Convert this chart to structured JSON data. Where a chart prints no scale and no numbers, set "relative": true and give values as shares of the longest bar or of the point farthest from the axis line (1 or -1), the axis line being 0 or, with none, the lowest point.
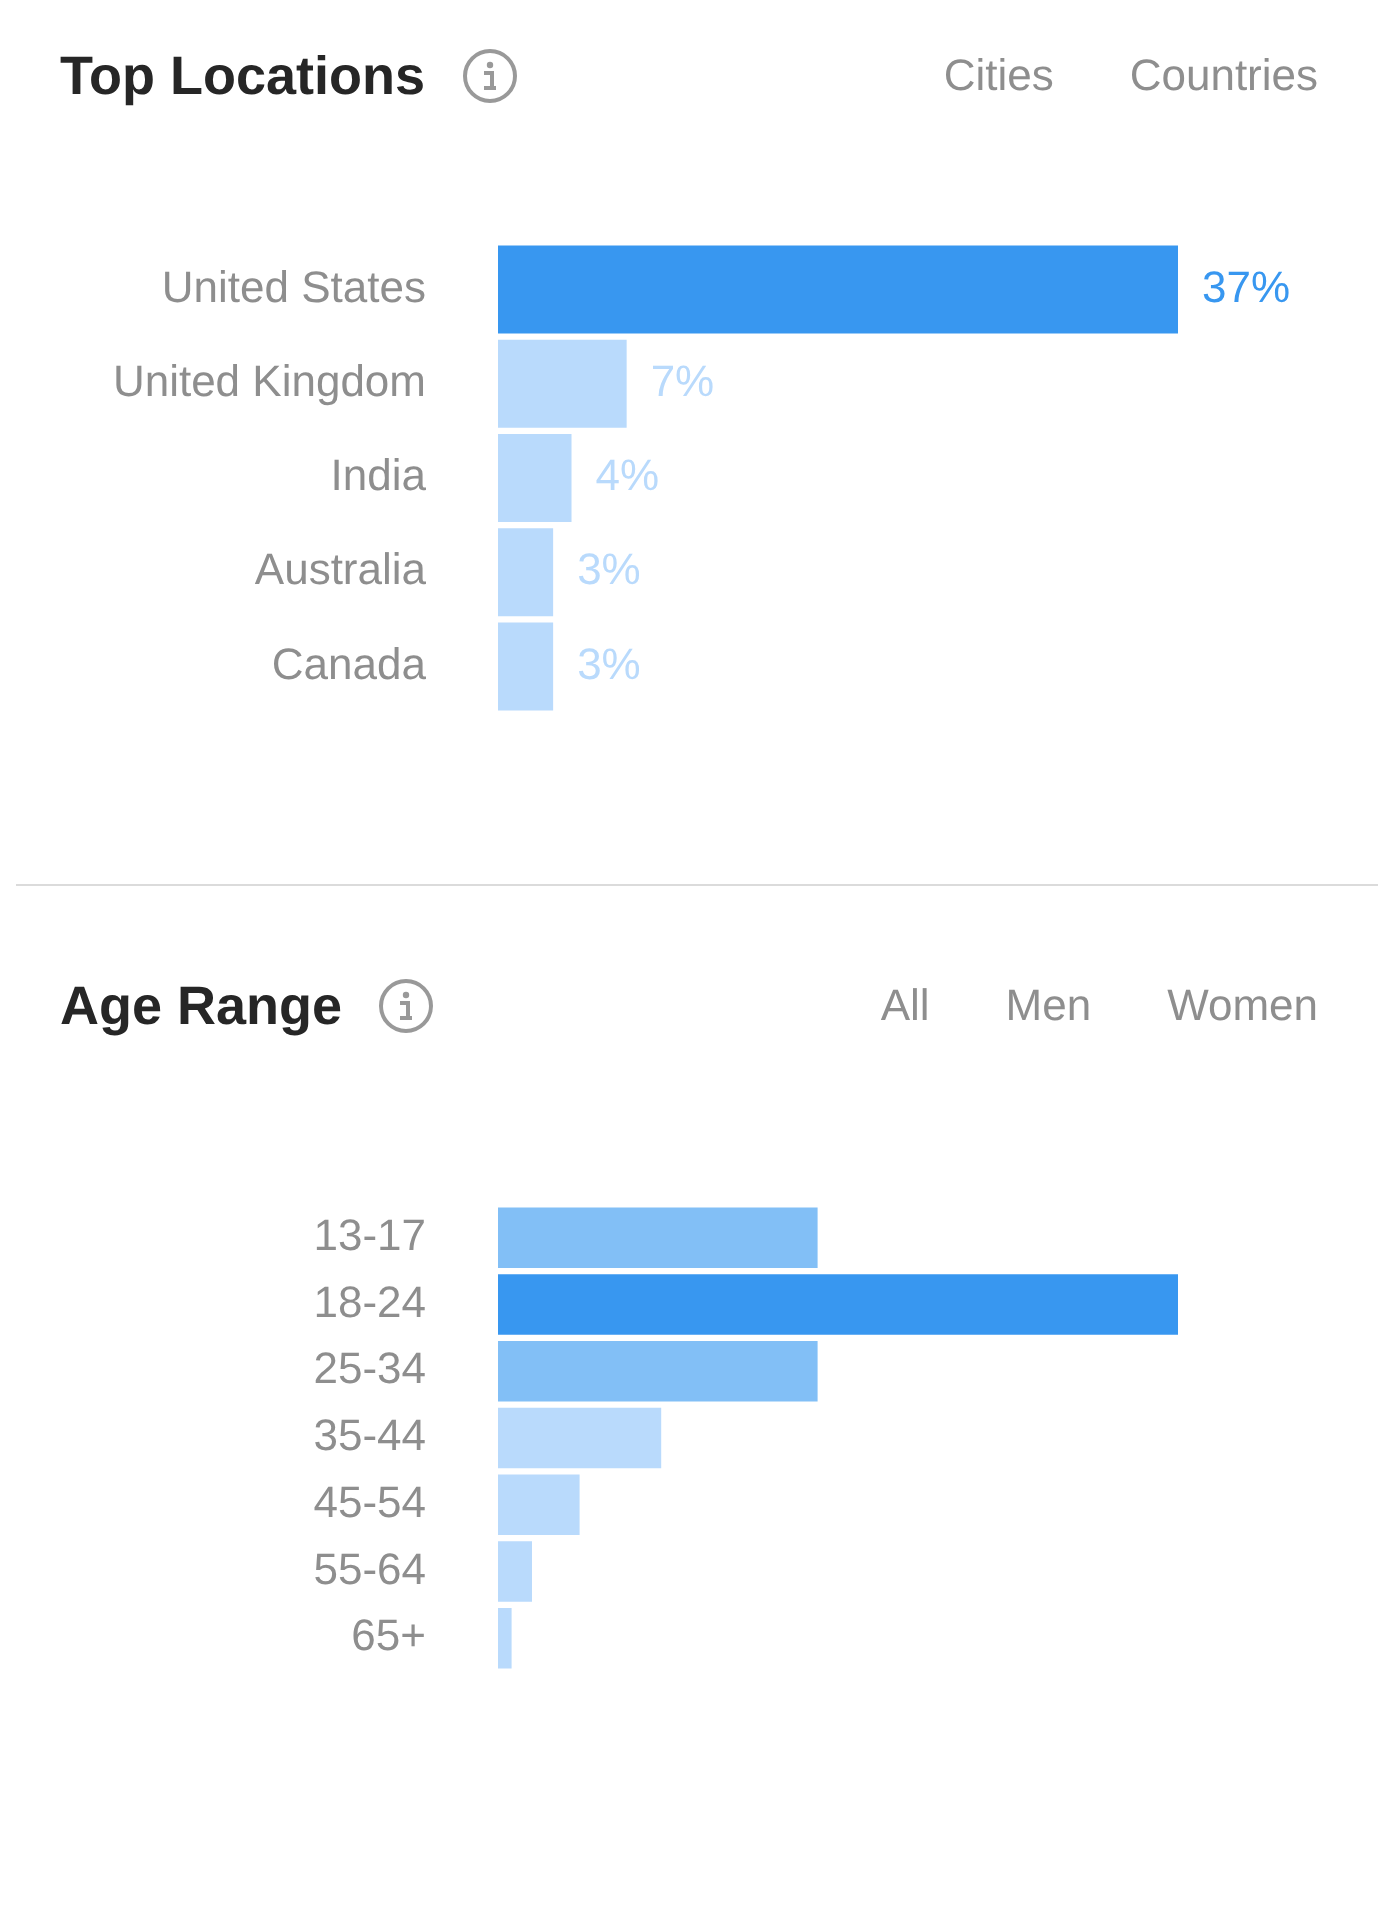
{
  "chart_data": [
    {
      "type": "bar",
      "title": "Top Locations",
      "orientation": "horizontal",
      "categories": [
        "United States",
        "United Kingdom",
        "India",
        "Australia",
        "Canada"
      ],
      "values": [
        37,
        7,
        4,
        3,
        3
      ],
      "colors": [
        "#3897f0",
        "#b9dafc",
        "#b9dafc",
        "#b9dafc",
        "#b9dafc"
      ],
      "value_labels": [
        "37%",
        "7%",
        "4%",
        "3%",
        "3%"
      ],
      "tick_labels": "y",
      "annotations": [
        "Cities",
        "Countries"
      ]
    },
    {
      "type": "bar",
      "title": "Age Range",
      "orientation": "horizontal",
      "relative": true,
      "categories": [
        "13-17",
        "18-24",
        "25-34",
        "35-44",
        "45-54",
        "55-64",
        "65+"
      ],
      "values": [
        0.47,
        1,
        0.47,
        0.24,
        0.12,
        0.05,
        0.02
      ],
      "colors": [
        "#82bff6",
        "#3897f0",
        "#82bff6",
        "#b9dafc",
        "#b9dafc",
        "#b9dafc",
        "#b9dafc"
      ],
      "annotations": [
        "All",
        "Men",
        "Women"
      ]
    }
  ]
}
